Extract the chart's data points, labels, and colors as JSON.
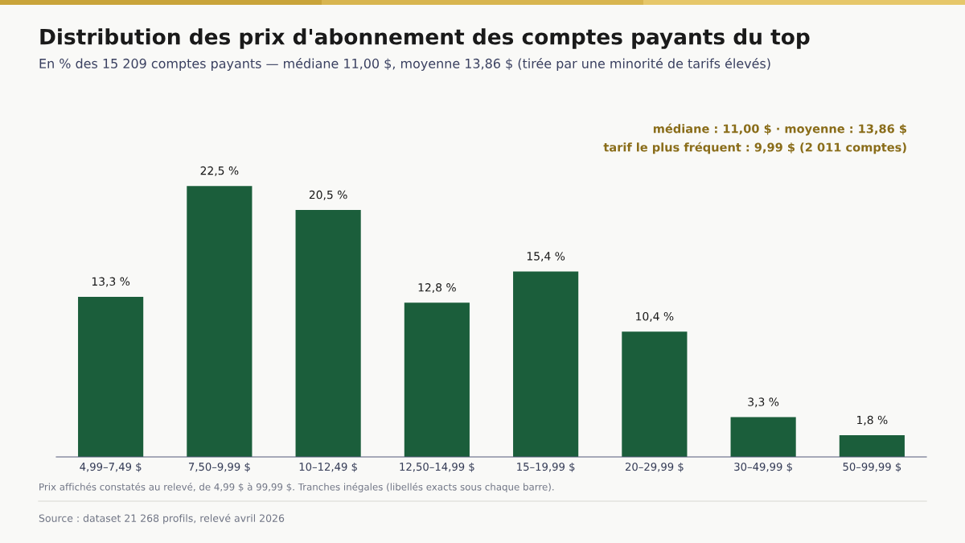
{
  "chart_data": {
    "type": "bar",
    "title": "Distribution des prix d'abonnement des comptes payants du top",
    "subtitle": "En % des 15 209 comptes payants — médiane 11,00 $, moyenne 13,86 $ (tirée par une minorité de tarifs élevés)",
    "categories": [
      "4,99–7,49 $",
      "7,50–9,99 $",
      "10–12,49 $",
      "12,50–14,99 $",
      "15–19,99 $",
      "20–29,99 $",
      "30–49,99 $",
      "50–99,99 $"
    ],
    "values": [
      13.3,
      22.5,
      20.5,
      12.8,
      15.4,
      10.4,
      3.3,
      1.8
    ],
    "value_labels": [
      "13,3 %",
      "22,5 %",
      "20,5 %",
      "12,8 %",
      "15,4 %",
      "10,4 %",
      "3,3 %",
      "1,8 %"
    ],
    "color": "#1b5e3b",
    "grid": false,
    "legend": false,
    "tick_labels": "x",
    "annotations": [
      "médiane : 11,00 $ · moyenne : 13,86 $",
      "tarif le plus fréquent : 9,99 $ (2 011 comptes)",
      "Prix affichés constatés au relevé, de 4,99 $ à 99,99 $. Tranches inégales (libellés exacts sous chaque barre).",
      "Source : dataset 21 268 profils, relevé avril 2026"
    ]
  }
}
